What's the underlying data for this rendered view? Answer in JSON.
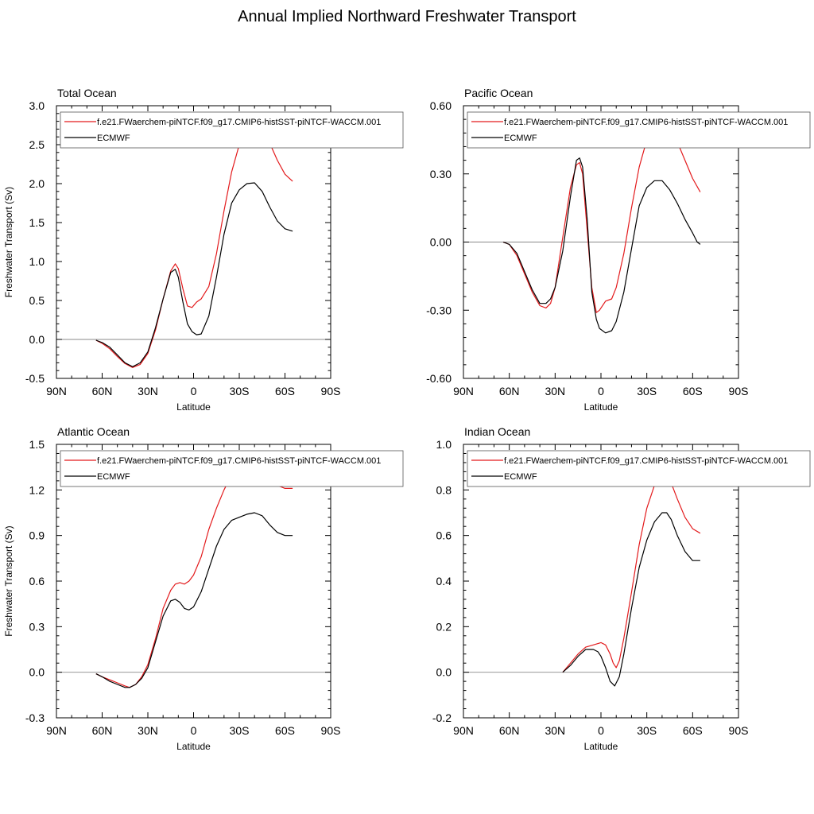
{
  "figure": {
    "title": "Annual Implied Northward Freshwater Transport"
  },
  "legend": {
    "entries": [
      {
        "label": "f.e21.FWaerchem-piNTCF.f09_g17.CMIP6-histSST-piNTCF-WACCM.001",
        "color": "#e31a1c"
      },
      {
        "label": "ECMWF",
        "color": "#000000"
      }
    ]
  },
  "chart_data": [
    {
      "type": "line",
      "title": "Total Ocean",
      "xlabel": "Latitude",
      "ylabel": "Freshwater Transport (Sv)",
      "xlim": [
        90,
        -90
      ],
      "ylim": [
        -0.5,
        3.0
      ],
      "x_ticks": [
        90,
        60,
        30,
        0,
        -30,
        -60,
        -90
      ],
      "x_tick_labels": [
        "90N",
        "60N",
        "30N",
        "0",
        "30S",
        "60S",
        "90S"
      ],
      "y_ticks": [
        -0.5,
        0.0,
        0.5,
        1.0,
        1.5,
        2.0,
        2.5,
        3.0
      ],
      "y_tick_labels": [
        "-0.5",
        "0.0",
        "0.5",
        "1.0",
        "1.5",
        "2.0",
        "2.5",
        "3.0"
      ],
      "grid": false,
      "legend_position": "top",
      "series": [
        {
          "name": "f.e21.FWaerchem-piNTCF.f09_g17.CMIP6-histSST-piNTCF-WACCM.001",
          "color": "#e31a1c",
          "x": [
            64,
            60,
            55,
            50,
            45,
            40,
            35,
            30,
            25,
            20,
            15,
            12,
            10,
            7,
            4,
            1,
            -2,
            -5,
            -10,
            -15,
            -20,
            -25,
            -30,
            -35,
            -40,
            -45,
            -50,
            -55,
            -60,
            -65
          ],
          "y": [
            -0.01,
            -0.05,
            -0.12,
            -0.22,
            -0.31,
            -0.36,
            -0.32,
            -0.18,
            0.12,
            0.52,
            0.88,
            0.97,
            0.91,
            0.65,
            0.43,
            0.41,
            0.48,
            0.52,
            0.68,
            1.1,
            1.65,
            2.15,
            2.5,
            2.7,
            2.78,
            2.72,
            2.52,
            2.3,
            2.12,
            2.03
          ]
        },
        {
          "name": "ECMWF",
          "color": "#000000",
          "x": [
            64,
            60,
            55,
            50,
            45,
            40,
            35,
            30,
            25,
            20,
            15,
            12,
            10,
            7,
            4,
            1,
            -2,
            -5,
            -10,
            -15,
            -20,
            -25,
            -30,
            -35,
            -40,
            -45,
            -50,
            -55,
            -60,
            -65
          ],
          "y": [
            -0.01,
            -0.04,
            -0.1,
            -0.2,
            -0.3,
            -0.35,
            -0.3,
            -0.16,
            0.15,
            0.52,
            0.86,
            0.9,
            0.8,
            0.48,
            0.2,
            0.1,
            0.06,
            0.07,
            0.3,
            0.8,
            1.35,
            1.75,
            1.92,
            2.0,
            2.01,
            1.9,
            1.7,
            1.52,
            1.42,
            1.39
          ]
        }
      ]
    },
    {
      "type": "line",
      "title": "Pacific Ocean",
      "xlabel": "Latitude",
      "ylabel": "",
      "xlim": [
        90,
        -90
      ],
      "ylim": [
        -0.6,
        0.6
      ],
      "x_ticks": [
        90,
        60,
        30,
        0,
        -30,
        -60,
        -90
      ],
      "x_tick_labels": [
        "90N",
        "60N",
        "30N",
        "0",
        "30S",
        "60S",
        "90S"
      ],
      "y_ticks": [
        -0.6,
        -0.3,
        0.0,
        0.3,
        0.6
      ],
      "y_tick_labels": [
        "-0.60",
        "-0.30",
        "0.00",
        "0.30",
        "0.60"
      ],
      "grid": false,
      "legend_position": "top",
      "series": [
        {
          "name": "f.e21.FWaerchem-piNTCF.f09_g17.CMIP6-histSST-piNTCF-WACCM.001",
          "color": "#e31a1c",
          "x": [
            64,
            60,
            55,
            50,
            45,
            40,
            36,
            33,
            30,
            25,
            20,
            16,
            14,
            12,
            9,
            6,
            3,
            1,
            -3,
            -7,
            -10,
            -15,
            -20,
            -25,
            -30,
            -35,
            -40,
            -45,
            -50,
            -55,
            -60,
            -65
          ],
          "y": [
            0.0,
            -0.01,
            -0.06,
            -0.14,
            -0.22,
            -0.28,
            -0.29,
            -0.27,
            -0.2,
            0.02,
            0.24,
            0.34,
            0.35,
            0.3,
            0.05,
            -0.2,
            -0.31,
            -0.3,
            -0.26,
            -0.25,
            -0.2,
            -0.05,
            0.15,
            0.33,
            0.45,
            0.51,
            0.52,
            0.5,
            0.44,
            0.36,
            0.28,
            0.22
          ]
        },
        {
          "name": "ECMWF",
          "color": "#000000",
          "x": [
            64,
            60,
            55,
            50,
            45,
            40,
            36,
            33,
            30,
            25,
            20,
            16,
            14,
            12,
            9,
            6,
            3,
            1,
            -3,
            -7,
            -10,
            -15,
            -20,
            -25,
            -30,
            -35,
            -40,
            -45,
            -50,
            -55,
            -60,
            -63,
            -65
          ],
          "y": [
            0.0,
            -0.01,
            -0.05,
            -0.13,
            -0.21,
            -0.27,
            -0.27,
            -0.25,
            -0.2,
            -0.04,
            0.2,
            0.36,
            0.37,
            0.33,
            0.1,
            -0.22,
            -0.34,
            -0.38,
            -0.4,
            -0.39,
            -0.35,
            -0.22,
            -0.03,
            0.16,
            0.24,
            0.27,
            0.27,
            0.23,
            0.17,
            0.1,
            0.04,
            0.0,
            -0.01
          ]
        }
      ]
    },
    {
      "type": "line",
      "title": "Atlantic Ocean",
      "xlabel": "Latitude",
      "ylabel": "Freshwater Transport (Sv)",
      "xlim": [
        90,
        -90
      ],
      "ylim": [
        -0.3,
        1.5
      ],
      "x_ticks": [
        90,
        60,
        30,
        0,
        -30,
        -60,
        -90
      ],
      "x_tick_labels": [
        "90N",
        "60N",
        "30N",
        "0",
        "30S",
        "60S",
        "90S"
      ],
      "y_ticks": [
        -0.3,
        0.0,
        0.3,
        0.6,
        0.9,
        1.2,
        1.5
      ],
      "y_tick_labels": [
        "-0.3",
        "0.0",
        "0.3",
        "0.6",
        "0.9",
        "1.2",
        "1.5"
      ],
      "grid": false,
      "legend_position": "top",
      "series": [
        {
          "name": "f.e21.FWaerchem-piNTCF.f09_g17.CMIP6-histSST-piNTCF-WACCM.001",
          "color": "#e31a1c",
          "x": [
            64,
            60,
            55,
            50,
            45,
            42,
            38,
            34,
            30,
            25,
            20,
            15,
            12,
            9,
            6,
            3,
            0,
            -5,
            -10,
            -15,
            -20,
            -25,
            -30,
            -35,
            -40,
            -45,
            -50,
            -55,
            -60,
            -65
          ],
          "y": [
            -0.01,
            -0.03,
            -0.05,
            -0.07,
            -0.09,
            -0.1,
            -0.08,
            -0.03,
            0.05,
            0.22,
            0.42,
            0.54,
            0.58,
            0.59,
            0.58,
            0.6,
            0.64,
            0.76,
            0.94,
            1.08,
            1.2,
            1.3,
            1.36,
            1.39,
            1.38,
            1.33,
            1.27,
            1.23,
            1.21,
            1.21
          ]
        },
        {
          "name": "ECMWF",
          "color": "#000000",
          "x": [
            64,
            60,
            55,
            50,
            45,
            42,
            38,
            34,
            30,
            25,
            20,
            15,
            12,
            9,
            6,
            3,
            0,
            -5,
            -10,
            -15,
            -20,
            -25,
            -30,
            -35,
            -40,
            -45,
            -50,
            -55,
            -60,
            -65
          ],
          "y": [
            -0.01,
            -0.03,
            -0.06,
            -0.08,
            -0.1,
            -0.1,
            -0.08,
            -0.04,
            0.03,
            0.2,
            0.37,
            0.47,
            0.48,
            0.46,
            0.42,
            0.41,
            0.43,
            0.53,
            0.68,
            0.83,
            0.94,
            1.0,
            1.02,
            1.04,
            1.05,
            1.03,
            0.97,
            0.92,
            0.9,
            0.9
          ]
        }
      ]
    },
    {
      "type": "line",
      "title": "Indian Ocean",
      "xlabel": "Latitude",
      "ylabel": "",
      "xlim": [
        90,
        -90
      ],
      "ylim": [
        -0.2,
        1.0
      ],
      "x_ticks": [
        90,
        60,
        30,
        0,
        -30,
        -60,
        -90
      ],
      "x_tick_labels": [
        "90N",
        "60N",
        "30N",
        "0",
        "30S",
        "60S",
        "90S"
      ],
      "y_ticks": [
        -0.2,
        0.0,
        0.2,
        0.4,
        0.6,
        0.8,
        1.0
      ],
      "y_tick_labels": [
        "-0.2",
        "0.0",
        "0.2",
        "0.4",
        "0.6",
        "0.8",
        "1.0"
      ],
      "grid": false,
      "legend_position": "top",
      "series": [
        {
          "name": "f.e21.FWaerchem-piNTCF.f09_g17.CMIP6-histSST-piNTCF-WACCM.001",
          "color": "#e31a1c",
          "x": [
            25,
            20,
            15,
            10,
            5,
            0,
            -3,
            -6,
            -8,
            -10,
            -12,
            -15,
            -20,
            -25,
            -30,
            -35,
            -40,
            -43,
            -46,
            -50,
            -55,
            -60,
            -65
          ],
          "y": [
            0.0,
            0.04,
            0.08,
            0.11,
            0.12,
            0.13,
            0.12,
            0.08,
            0.04,
            0.02,
            0.05,
            0.15,
            0.35,
            0.56,
            0.72,
            0.82,
            0.86,
            0.86,
            0.83,
            0.76,
            0.68,
            0.63,
            0.61
          ]
        },
        {
          "name": "ECMWF",
          "color": "#000000",
          "x": [
            25,
            20,
            15,
            10,
            5,
            2,
            0,
            -3,
            -6,
            -9,
            -12,
            -15,
            -20,
            -25,
            -30,
            -35,
            -40,
            -43,
            -46,
            -50,
            -55,
            -60,
            -65
          ],
          "y": [
            0.0,
            0.03,
            0.07,
            0.1,
            0.1,
            0.09,
            0.07,
            0.02,
            -0.04,
            -0.06,
            -0.02,
            0.08,
            0.28,
            0.46,
            0.58,
            0.66,
            0.7,
            0.7,
            0.67,
            0.6,
            0.53,
            0.49,
            0.49
          ]
        }
      ]
    }
  ]
}
